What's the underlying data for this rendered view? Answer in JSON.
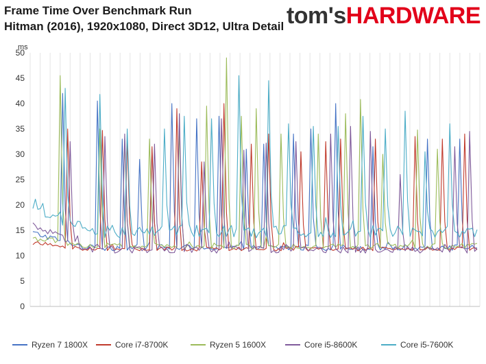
{
  "header": {
    "title": "Frame Time Over Benchmark Run",
    "subtitle": "Hitman (2016), 1920x1080, Direct 3D12, Ultra Detail",
    "logo_part1": "tom's",
    "logo_part2": "HARDWARE"
  },
  "chart_data": {
    "type": "line",
    "ylabel": "ms",
    "ylim": [
      0,
      50
    ],
    "yticks": [
      0,
      5,
      10,
      15,
      20,
      25,
      30,
      35,
      40,
      45,
      50
    ],
    "grid": "vertical",
    "legend_position": "bottom",
    "x_count": 180,
    "series": [
      {
        "name": "Ryzen 7 1800X",
        "color": "#4472c4",
        "base": 11.6,
        "start": 14.5,
        "noise": 0.6,
        "spikes": [
          [
            12,
            42
          ],
          [
            26,
            40.5
          ],
          [
            36,
            33
          ],
          [
            43,
            29
          ],
          [
            48,
            31
          ],
          [
            56,
            40
          ],
          [
            66,
            37
          ],
          [
            75,
            37.5
          ],
          [
            86,
            31
          ],
          [
            93,
            32
          ],
          [
            105,
            34
          ],
          [
            112,
            35
          ],
          [
            122,
            40
          ],
          [
            137,
            31.5
          ],
          [
            159,
            33
          ],
          [
            172,
            33
          ]
        ]
      },
      {
        "name": "Core i7-8700K",
        "color": "#c0392b",
        "base": 11.3,
        "start": 12.5,
        "noise": 0.4,
        "spikes": [
          [
            14,
            35
          ],
          [
            28,
            34.7
          ],
          [
            38,
            33
          ],
          [
            48,
            31.5
          ],
          [
            58,
            39
          ],
          [
            68,
            28.5
          ],
          [
            77,
            40
          ],
          [
            88,
            32
          ],
          [
            95,
            34
          ],
          [
            108,
            30.5
          ],
          [
            118,
            32.5
          ],
          [
            124,
            33
          ],
          [
            138,
            33
          ],
          [
            154,
            33.5
          ],
          [
            165,
            33
          ],
          [
            174,
            34
          ]
        ]
      },
      {
        "name": "Ryzen 5 1600X",
        "color": "#9bbb59",
        "base": 11.9,
        "start": 13.5,
        "noise": 0.6,
        "spikes": [
          [
            11,
            45.5
          ],
          [
            27,
            35
          ],
          [
            37,
            33
          ],
          [
            47,
            33
          ],
          [
            59,
            35
          ],
          [
            70,
            39.5
          ],
          [
            78,
            49
          ],
          [
            84,
            37.5
          ],
          [
            90,
            39
          ],
          [
            100,
            34
          ],
          [
            115,
            34
          ],
          [
            126,
            38
          ],
          [
            132,
            40.8
          ],
          [
            141,
            30
          ],
          [
            155,
            34.8
          ],
          [
            163,
            31
          ]
        ]
      },
      {
        "name": "Core i5-8600K",
        "color": "#7f5a9b",
        "base": 11.2,
        "start": 16,
        "noise": 0.7,
        "spikes": [
          [
            15,
            32.5
          ],
          [
            29,
            33.5
          ],
          [
            37,
            34
          ],
          [
            49,
            32
          ],
          [
            59,
            38
          ],
          [
            69,
            28.5
          ],
          [
            76,
            37
          ],
          [
            85,
            30.8
          ],
          [
            94,
            32.2
          ],
          [
            106,
            32.5
          ],
          [
            120,
            34
          ],
          [
            128,
            35.5
          ],
          [
            136,
            34.5
          ],
          [
            148,
            26
          ],
          [
            170,
            31.5
          ],
          [
            176,
            34.5
          ]
        ]
      },
      {
        "name": "Core i5-7600K",
        "color": "#4bacc6",
        "base": 14.8,
        "start": 20,
        "noise": 1.3,
        "spikes": [
          [
            13,
            43
          ],
          [
            27,
            41.8
          ],
          [
            38,
            35
          ],
          [
            53,
            35
          ],
          [
            61,
            37.5
          ],
          [
            72,
            37
          ],
          [
            83,
            45.5
          ],
          [
            95,
            44.5
          ],
          [
            103,
            36
          ],
          [
            113,
            35.5
          ],
          [
            123,
            35.5
          ],
          [
            133,
            37.5
          ],
          [
            142,
            35
          ],
          [
            150,
            38.5
          ],
          [
            158,
            30.5
          ],
          [
            168,
            36
          ]
        ]
      }
    ]
  }
}
